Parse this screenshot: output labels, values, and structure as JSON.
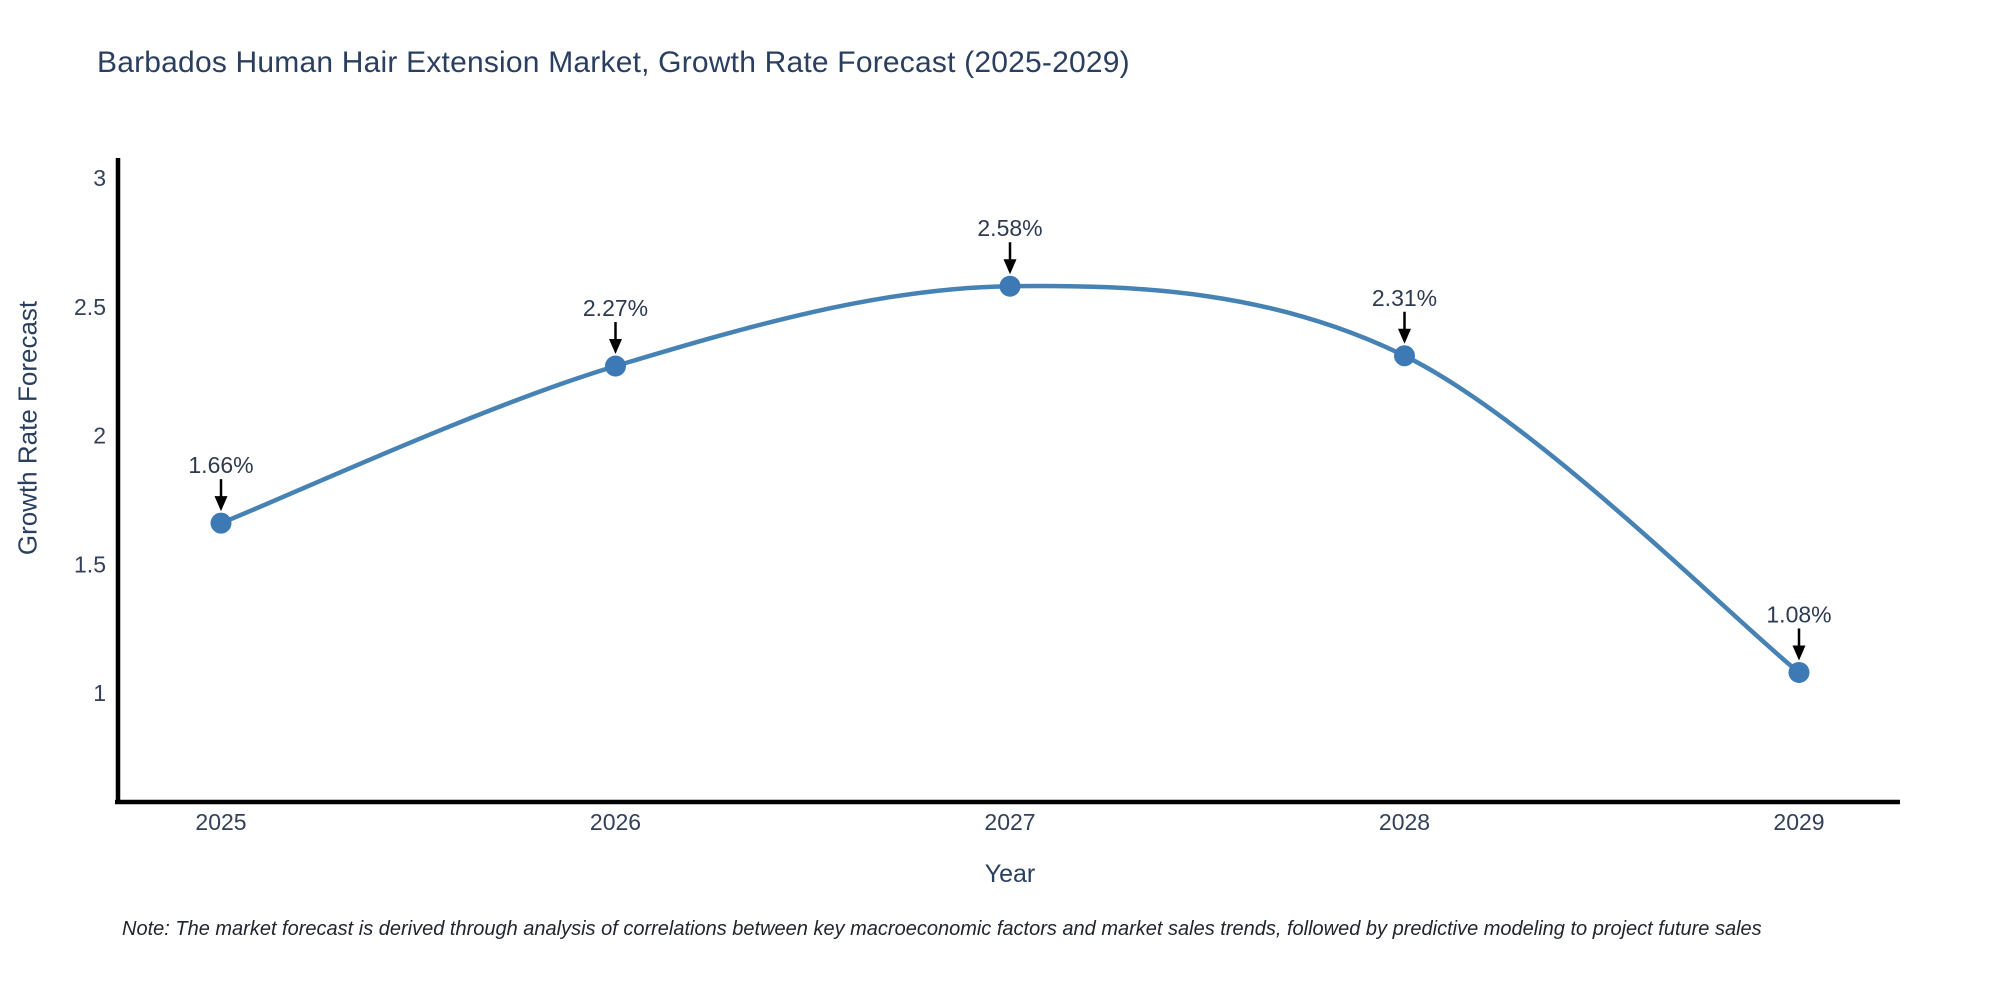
{
  "title": "Barbados Human Hair Extension Market, Growth Rate Forecast (2025-2029)",
  "note": "Note: The market forecast is derived through analysis of correlations between key macroeconomic factors and market sales trends, followed by predictive modeling to project future sales",
  "chart_data": {
    "type": "line",
    "line_shape": "spline",
    "title": "Barbados Human Hair Extension Market, Growth Rate Forecast (2025-2029)",
    "xlabel": "Year",
    "ylabel": "Growth Rate Forecast",
    "x": [
      "2025",
      "2026",
      "2027",
      "2028",
      "2029"
    ],
    "values": [
      1.66,
      2.27,
      2.58,
      2.31,
      1.08
    ],
    "point_labels": [
      "1.66%",
      "2.27%",
      "2.58%",
      "2.31%",
      "1.08%"
    ],
    "yticks": [
      1,
      1.5,
      2,
      2.5,
      3
    ],
    "ylim": [
      0.577,
      3.078
    ],
    "grid": false,
    "legend": "none",
    "annotations": "value labels with downward arrows above each point",
    "colors": {
      "line": "#4682b4",
      "marker": "#3d79b5",
      "arrow": "#000000",
      "axis": "#000000",
      "tick_text": "#33405a",
      "title_text": "#2a3f5f"
    }
  }
}
